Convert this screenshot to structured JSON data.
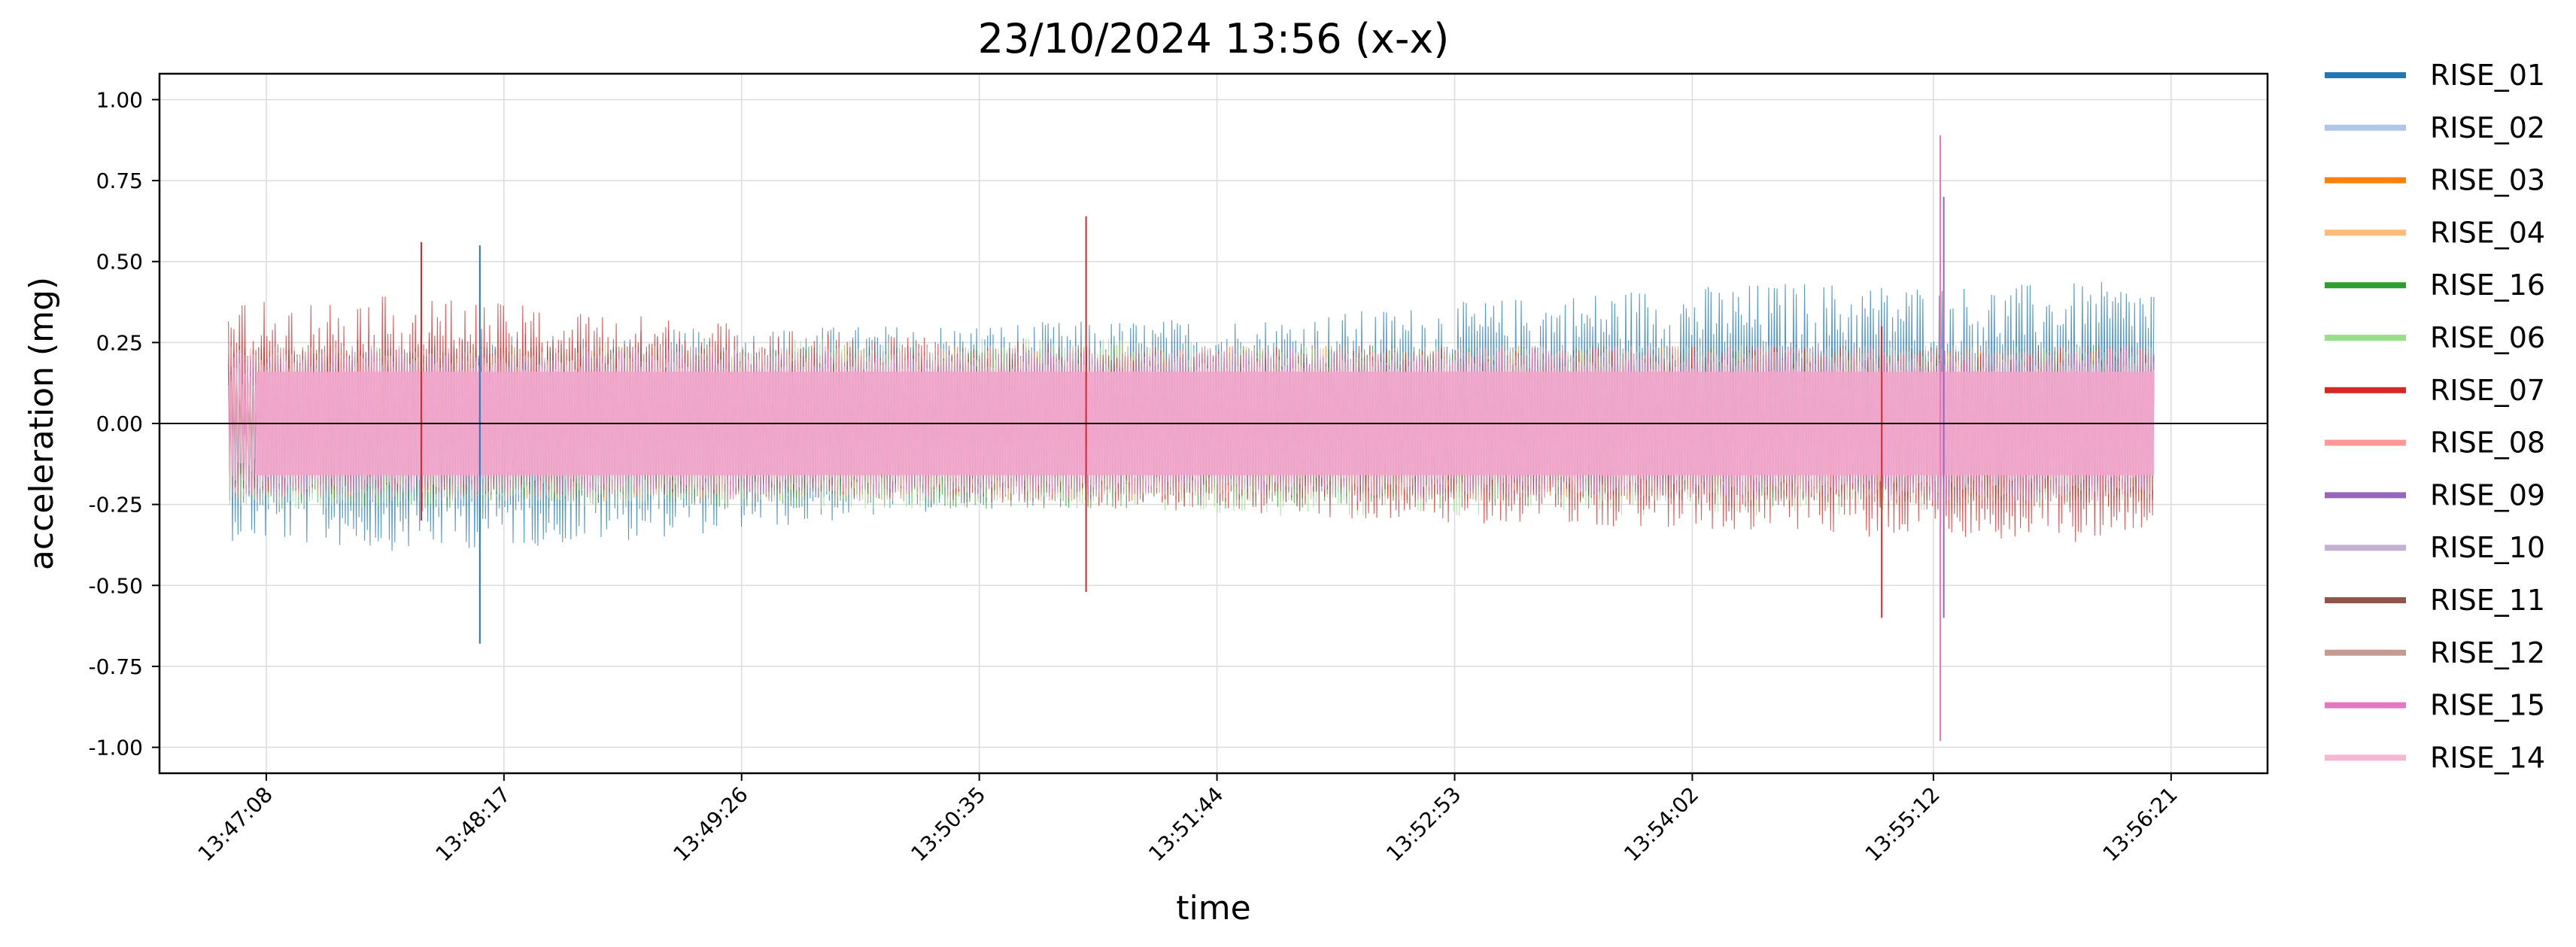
{
  "chart_data": {
    "type": "line",
    "title": "23/10/2024 13:56 (x-x)",
    "xlabel": "time",
    "ylabel": "acceleration (mg)",
    "ylim": [
      -1.08,
      1.08
    ],
    "yticks": [
      1.0,
      0.75,
      0.5,
      0.25,
      0.0,
      -0.25,
      -0.5,
      -0.75,
      -1.0
    ],
    "ytick_labels": [
      "1.00",
      "0.75",
      "0.50",
      "0.25",
      "0.00",
      "-0.25",
      "-0.50",
      "-0.75",
      "-1.00"
    ],
    "xlim": [
      "13:46:37",
      "13:56:49"
    ],
    "xticks": [
      "13:47:08",
      "13:48:17",
      "13:49:26",
      "13:50:35",
      "13:51:44",
      "13:52:53",
      "13:54:02",
      "13:55:12",
      "13:56:21"
    ],
    "data_range": [
      "13:46:57",
      "13:56:16"
    ],
    "grid": true,
    "zero_line": true,
    "legend_position": "outside-right",
    "series": [
      {
        "name": "RISE_01",
        "color": "#1f77b4",
        "upper": [
          0.22,
          0.24,
          0.26,
          0.27,
          0.28,
          0.29,
          0.3,
          0.34,
          0.38,
          0.4,
          0.39,
          0.4
        ],
        "lower": [
          -0.33,
          -0.36,
          -0.34,
          -0.3,
          -0.25,
          -0.22,
          -0.22,
          -0.22,
          -0.22,
          -0.22,
          -0.23,
          -0.22
        ]
      },
      {
        "name": "RISE_02",
        "color": "#aec7e8",
        "upper": [
          0.2,
          0.2,
          0.2,
          0.2,
          0.2,
          0.2,
          0.2,
          0.2,
          0.2,
          0.2,
          0.2,
          0.2
        ],
        "lower": [
          -0.22,
          -0.22,
          -0.22,
          -0.22,
          -0.22,
          -0.22,
          -0.22,
          -0.22,
          -0.22,
          -0.22,
          -0.22,
          -0.22
        ]
      },
      {
        "name": "RISE_03",
        "color": "#ff7f0e",
        "upper": [
          0.22,
          0.22,
          0.22,
          0.22,
          0.22,
          0.22,
          0.22,
          0.22,
          0.22,
          0.22,
          0.22,
          0.22
        ],
        "lower": [
          -0.22,
          -0.22,
          -0.22,
          -0.22,
          -0.22,
          -0.22,
          -0.22,
          -0.22,
          -0.22,
          -0.22,
          -0.22,
          -0.22
        ]
      },
      {
        "name": "RISE_04",
        "color": "#ffbb78",
        "upper": [
          0.2,
          0.2,
          0.2,
          0.2,
          0.2,
          0.2,
          0.2,
          0.2,
          0.2,
          0.2,
          0.2,
          0.2
        ],
        "lower": [
          -0.2,
          -0.2,
          -0.2,
          -0.2,
          -0.2,
          -0.2,
          -0.2,
          -0.2,
          -0.2,
          -0.2,
          -0.2,
          -0.2
        ]
      },
      {
        "name": "RISE_16",
        "color": "#2ca02c",
        "upper": [
          0.22,
          0.22,
          0.22,
          0.22,
          0.22,
          0.22,
          0.22,
          0.22,
          0.22,
          0.22,
          0.22,
          0.22
        ],
        "lower": [
          -0.24,
          -0.24,
          -0.24,
          -0.24,
          -0.24,
          -0.24,
          -0.24,
          -0.24,
          -0.24,
          -0.24,
          -0.24,
          -0.24
        ]
      },
      {
        "name": "RISE_06",
        "color": "#98df8a",
        "upper": [
          0.22,
          0.22,
          0.24,
          0.24,
          0.24,
          0.24,
          0.22,
          0.22,
          0.22,
          0.22,
          0.22,
          0.22
        ],
        "lower": [
          -0.24,
          -0.24,
          -0.24,
          -0.24,
          -0.24,
          -0.24,
          -0.26,
          -0.26,
          -0.26,
          -0.26,
          -0.24,
          -0.24
        ]
      },
      {
        "name": "RISE_07",
        "color": "#d62728",
        "upper": [
          0.34,
          0.36,
          0.32,
          0.28,
          0.24,
          0.22,
          0.22,
          0.22,
          0.22,
          0.22,
          0.22,
          0.22
        ],
        "lower": [
          -0.2,
          -0.2,
          -0.2,
          -0.2,
          -0.22,
          -0.24,
          -0.26,
          -0.28,
          -0.3,
          -0.32,
          -0.33,
          -0.34
        ]
      },
      {
        "name": "RISE_08",
        "color": "#ff9896",
        "upper": [
          0.22,
          0.22,
          0.22,
          0.22,
          0.22,
          0.22,
          0.22,
          0.22,
          0.22,
          0.22,
          0.22,
          0.22
        ],
        "lower": [
          -0.22,
          -0.22,
          -0.22,
          -0.22,
          -0.22,
          -0.22,
          -0.22,
          -0.22,
          -0.22,
          -0.22,
          -0.22,
          -0.22
        ]
      },
      {
        "name": "RISE_09",
        "color": "#9467bd",
        "upper": [
          0.2,
          0.2,
          0.2,
          0.2,
          0.2,
          0.2,
          0.2,
          0.2,
          0.2,
          0.2,
          0.2,
          0.2
        ],
        "lower": [
          -0.2,
          -0.2,
          -0.2,
          -0.2,
          -0.2,
          -0.2,
          -0.2,
          -0.2,
          -0.2,
          -0.2,
          -0.2,
          -0.2
        ]
      },
      {
        "name": "RISE_10",
        "color": "#c5b0d5",
        "upper": [
          0.2,
          0.2,
          0.2,
          0.2,
          0.2,
          0.2,
          0.2,
          0.2,
          0.2,
          0.2,
          0.2,
          0.2
        ],
        "lower": [
          -0.2,
          -0.2,
          -0.2,
          -0.2,
          -0.2,
          -0.2,
          -0.2,
          -0.2,
          -0.2,
          -0.2,
          -0.2,
          -0.2
        ]
      },
      {
        "name": "RISE_11",
        "color": "#8c564b",
        "upper": [
          0.2,
          0.2,
          0.2,
          0.2,
          0.2,
          0.2,
          0.2,
          0.2,
          0.2,
          0.2,
          0.2,
          0.2
        ],
        "lower": [
          -0.2,
          -0.2,
          -0.2,
          -0.2,
          -0.2,
          -0.2,
          -0.2,
          -0.2,
          -0.2,
          -0.2,
          -0.2,
          -0.2
        ]
      },
      {
        "name": "RISE_12",
        "color": "#c49c94",
        "upper": [
          0.2,
          0.2,
          0.2,
          0.2,
          0.2,
          0.2,
          0.2,
          0.2,
          0.2,
          0.2,
          0.2,
          0.2
        ],
        "lower": [
          -0.2,
          -0.2,
          -0.2,
          -0.2,
          -0.2,
          -0.2,
          -0.2,
          -0.2,
          -0.2,
          -0.2,
          -0.2,
          -0.2
        ]
      },
      {
        "name": "RISE_15",
        "color": "#e377c2",
        "upper": [
          0.22,
          0.22,
          0.22,
          0.22,
          0.22,
          0.22,
          0.22,
          0.22,
          0.22,
          0.22,
          0.22,
          0.22
        ],
        "lower": [
          -0.22,
          -0.22,
          -0.22,
          -0.22,
          -0.22,
          -0.22,
          -0.22,
          -0.22,
          -0.22,
          -0.22,
          -0.22,
          -0.22
        ]
      },
      {
        "name": "RISE_14",
        "color": "#f7b6d2",
        "upper": [
          0.18,
          0.18,
          0.18,
          0.18,
          0.18,
          0.18,
          0.18,
          0.18,
          0.18,
          0.18,
          0.18,
          0.18
        ],
        "lower": [
          -0.18,
          -0.18,
          -0.18,
          -0.18,
          -0.18,
          -0.18,
          -0.18,
          -0.18,
          -0.18,
          -0.18,
          -0.18,
          -0.18
        ]
      }
    ],
    "annotations": [
      {
        "time": "13:51:06",
        "series": "RISE_07",
        "peak": 0.64,
        "trough": -0.52
      },
      {
        "time": "13:55:14",
        "series": "RISE_15",
        "peak": 0.89,
        "trough": -0.98
      },
      {
        "time": "13:55:15",
        "series": "RISE_09",
        "peak": 0.7,
        "trough": -0.6
      },
      {
        "time": "13:54:57",
        "series": "RISE_07",
        "peak": 0.3,
        "trough": -0.6
      },
      {
        "time": "13:48:10",
        "series": "RISE_01",
        "peak": 0.55,
        "trough": -0.68
      },
      {
        "time": "13:47:53",
        "series": "RISE_07",
        "peak": 0.56,
        "trough": -0.3
      }
    ]
  }
}
